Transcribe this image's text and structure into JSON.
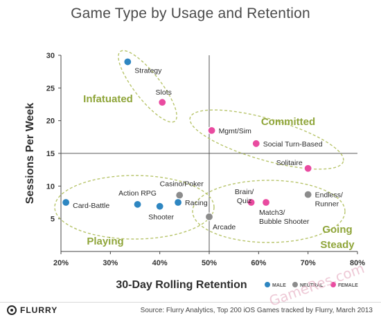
{
  "chart_data": {
    "type": "scatter",
    "title": "Game Type by Usage and Retention",
    "xlabel": "30-Day Rolling Retention",
    "ylabel": "Sessions Per Week",
    "xlim": [
      20,
      80
    ],
    "ylim": [
      0,
      30
    ],
    "x_ticks": [
      "20%",
      "30%",
      "40%",
      "50%",
      "60%",
      "70%",
      "80%"
    ],
    "y_ticks": [
      "5",
      "10",
      "15",
      "20",
      "25",
      "30"
    ],
    "grid": false,
    "legend_placement": "bottom-right",
    "legend": [
      {
        "key": "male",
        "label": "MALE",
        "color": "#2e86c1"
      },
      {
        "key": "neutral",
        "label": "NEUTRAL",
        "color": "#8c8c8c"
      },
      {
        "key": "female",
        "label": "FEMALE",
        "color": "#e94ba0"
      }
    ],
    "points": [
      {
        "label": "Strategy",
        "x": 33.5,
        "y": 29,
        "group": "male"
      },
      {
        "label": "Slots",
        "x": 40.5,
        "y": 22.8,
        "group": "female"
      },
      {
        "label": "Mgmt/Sim",
        "x": 50.5,
        "y": 18.5,
        "group": "female"
      },
      {
        "label": "Social Turn-Based",
        "x": 59.5,
        "y": 16.5,
        "group": "female"
      },
      {
        "label": "Solitaire",
        "x": 70,
        "y": 12.7,
        "group": "female"
      },
      {
        "label": "Card-Battle",
        "x": 21,
        "y": 7.5,
        "group": "male"
      },
      {
        "label": "Action RPG",
        "x": 35.5,
        "y": 7.2,
        "group": "male"
      },
      {
        "label": "Shooter",
        "x": 40,
        "y": 6.9,
        "group": "male"
      },
      {
        "label": "Casino/Poker",
        "x": 44,
        "y": 8.6,
        "group": "neutral"
      },
      {
        "label": "Racing",
        "x": 43.7,
        "y": 7.5,
        "group": "male"
      },
      {
        "label": "Arcade",
        "x": 50,
        "y": 5.3,
        "group": "neutral"
      },
      {
        "label": "Brain/ Quiz",
        "x": 58.5,
        "y": 7.5,
        "group": "female"
      },
      {
        "label": "Match3/ Bubble Shooter",
        "x": 61.5,
        "y": 7.5,
        "group": "female"
      },
      {
        "label": "Endless/ Runner",
        "x": 70,
        "y": 8.7,
        "group": "neutral"
      }
    ],
    "quadrant_labels": [
      "Infatuated",
      "Committed",
      "Playing",
      "Going Steady"
    ],
    "divider_x": 50,
    "divider_y": 15,
    "accent_color": "#8fa53a"
  },
  "footer": {
    "brand": "FLURRY",
    "source": "Source: Flurry Analytics, Top 200 iOS Games tracked by Flurry, March 2013"
  },
  "watermark": "GameRes.com"
}
